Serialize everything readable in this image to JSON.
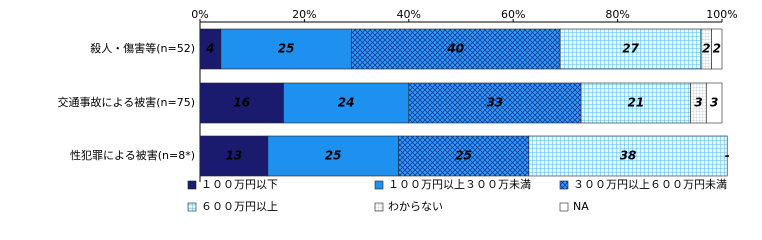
{
  "chart_data": {
    "type": "stacked-bar-horizontal",
    "categories": [
      "殺人・傷害等(n=52)",
      "交通事故による被害(n=75)",
      "性犯罪による被害(n=8*)"
    ],
    "series": [
      {
        "name": "１００万円以下",
        "color": "#1a1a6e",
        "pattern": "solid",
        "values": [
          4,
          16,
          13
        ]
      },
      {
        "name": "１００万円以上３００万未満",
        "color": "#1e90f0",
        "pattern": "solid",
        "values": [
          25,
          24,
          25
        ]
      },
      {
        "name": "３００万円以上６００万円未満",
        "color": "#3399ff",
        "pattern": "crosshatch",
        "values": [
          40,
          33,
          25
        ]
      },
      {
        "name": "６００万円以上",
        "color": "#d8f2ff",
        "pattern": "grid",
        "values": [
          27,
          21,
          38
        ]
      },
      {
        "name": "わからない",
        "color": "#ffffff",
        "pattern": "finegrid",
        "values": [
          2,
          3,
          null
        ]
      },
      {
        "name": "NA",
        "color": "#ffffff",
        "pattern": "solid",
        "values": [
          2,
          3,
          0
        ],
        "value_labels": [
          "2",
          "3",
          "-"
        ]
      }
    ],
    "xlim": [
      0,
      100
    ],
    "xticks": [
      {
        "value": 0,
        "label": "0%"
      },
      {
        "value": 20,
        "label": "20%"
      },
      {
        "value": 40,
        "label": "40%"
      },
      {
        "value": 60,
        "label": "60%"
      },
      {
        "value": 80,
        "label": "80%"
      },
      {
        "value": 100,
        "label": "100%"
      }
    ]
  }
}
